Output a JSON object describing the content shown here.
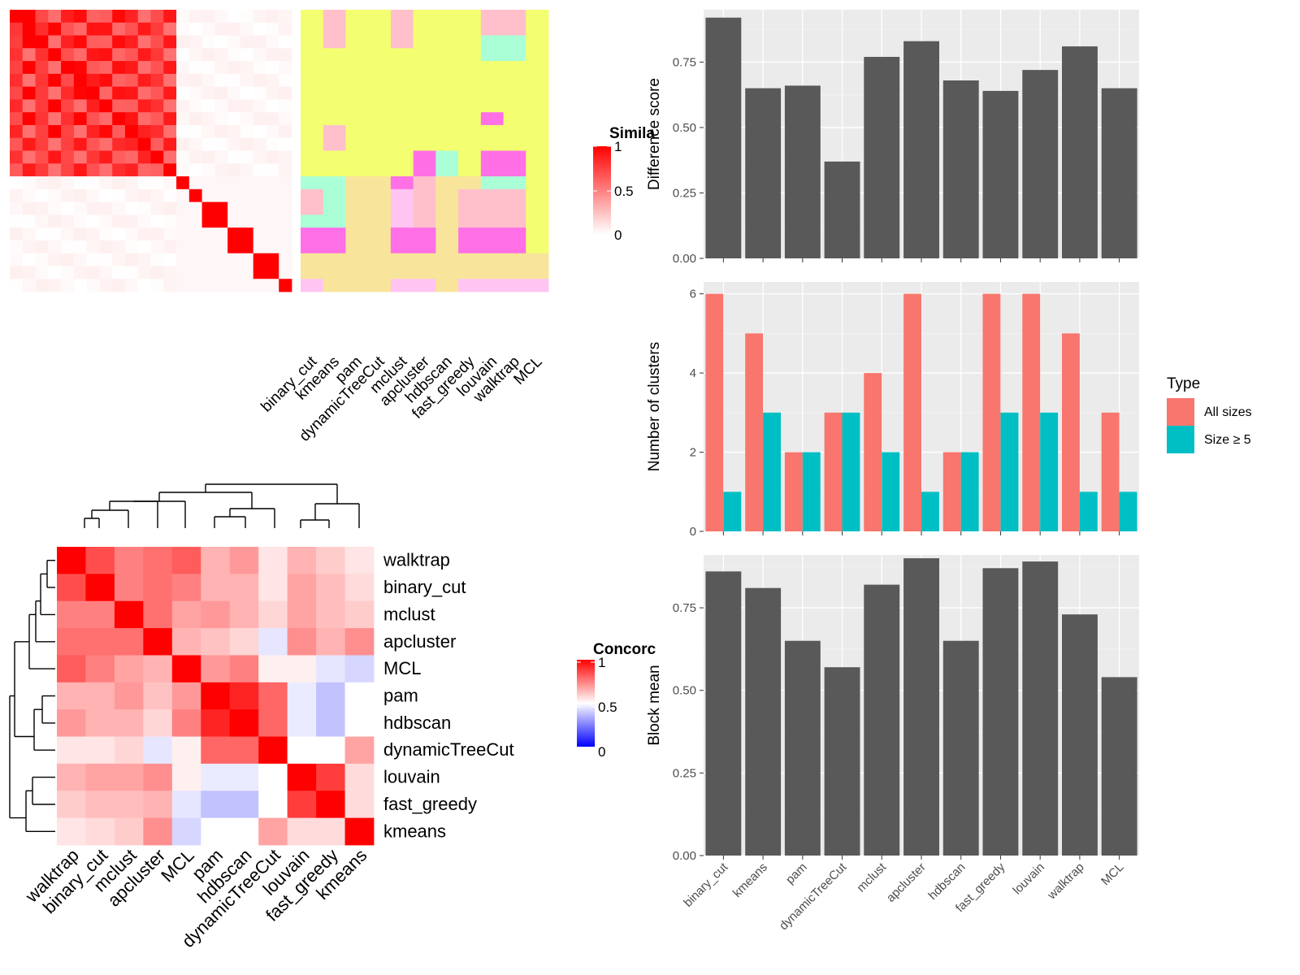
{
  "colors": {
    "heat_red": "#ff0000",
    "heat_white": "#ffffff",
    "heat_blue": "#0000ff",
    "bar_gray": "#595959",
    "panel_bg": "#ebebeb",
    "all_sizes": "#f8766d",
    "size5": "#00bfc4",
    "assign_yellow": "#f3ff70",
    "assign_pink": "#ffc0cb",
    "assign_mint": "#aaffd6",
    "assign_magenta": "#ff6fe6",
    "assign_tan": "#f8e59b",
    "assign_lilac": "#ffc4f1"
  },
  "chart_data": [
    {
      "id": "similarity-heatmap",
      "type": "heatmap",
      "legend_title": "Similarity",
      "legend_title_visible": "Simila",
      "legend_ticks": [
        "1",
        "0.5",
        "0"
      ],
      "size": 22,
      "pattern": "block-diagonal similarity matrix with one large red block (rows 1-13) and small red blocks down the diagonal"
    },
    {
      "id": "assignment-heatmap",
      "type": "heatmap",
      "columns": [
        "binary_cut",
        "kmeans",
        "pam",
        "dynamicTreeCut",
        "mclust",
        "apcluster",
        "hdbscan",
        "fast_greedy",
        "louvain",
        "walktrap",
        "MCL"
      ]
    },
    {
      "id": "concordance-heatmap",
      "type": "heatmap",
      "legend_title": "Concordance",
      "legend_title_visible": "Concorc",
      "legend_ticks": [
        "1",
        "0.5",
        "0"
      ],
      "labels": [
        "walktrap",
        "binary_cut",
        "mclust",
        "apcluster",
        "MCL",
        "pam",
        "hdbscan",
        "dynamicTreeCut",
        "louvain",
        "fast_greedy",
        "kmeans"
      ],
      "matrix": [
        [
          1.0,
          0.85,
          0.75,
          0.78,
          0.82,
          0.65,
          0.7,
          0.55,
          0.65,
          0.6,
          0.55
        ],
        [
          0.85,
          1.0,
          0.75,
          0.78,
          0.75,
          0.65,
          0.65,
          0.55,
          0.68,
          0.63,
          0.57
        ],
        [
          0.75,
          0.75,
          1.0,
          0.78,
          0.68,
          0.7,
          0.65,
          0.58,
          0.68,
          0.63,
          0.6
        ],
        [
          0.78,
          0.78,
          0.78,
          1.0,
          0.65,
          0.62,
          0.58,
          0.45,
          0.72,
          0.65,
          0.72
        ],
        [
          0.82,
          0.75,
          0.68,
          0.65,
          1.0,
          0.7,
          0.75,
          0.53,
          0.53,
          0.45,
          0.42
        ],
        [
          0.65,
          0.65,
          0.7,
          0.62,
          0.7,
          1.0,
          0.93,
          0.8,
          0.46,
          0.38,
          0.5
        ],
        [
          0.7,
          0.65,
          0.65,
          0.58,
          0.75,
          0.93,
          1.0,
          0.8,
          0.46,
          0.38,
          0.5
        ],
        [
          0.55,
          0.55,
          0.58,
          0.45,
          0.53,
          0.8,
          0.8,
          1.0,
          0.5,
          0.5,
          0.68
        ],
        [
          0.65,
          0.68,
          0.68,
          0.72,
          0.53,
          0.46,
          0.46,
          0.5,
          1.0,
          0.88,
          0.57
        ],
        [
          0.6,
          0.63,
          0.63,
          0.65,
          0.45,
          0.38,
          0.38,
          0.5,
          0.88,
          1.0,
          0.57
        ],
        [
          0.55,
          0.57,
          0.6,
          0.72,
          0.42,
          0.5,
          0.5,
          0.68,
          0.57,
          0.57,
          1.0
        ]
      ]
    },
    {
      "id": "difference-score",
      "type": "bar",
      "categories": [
        "binary_cut",
        "kmeans",
        "pam",
        "dynamicTreeCut",
        "mclust",
        "apcluster",
        "hdbscan",
        "fast_greedy",
        "louvain",
        "walktrap",
        "MCL"
      ],
      "values": [
        0.92,
        0.65,
        0.66,
        0.37,
        0.77,
        0.83,
        0.68,
        0.64,
        0.72,
        0.81,
        0.65
      ],
      "ylabel": "Difference score",
      "ylim": [
        0,
        0.95
      ],
      "yticks": [
        "0.00",
        "0.25",
        "0.50",
        "0.75"
      ]
    },
    {
      "id": "number-of-clusters",
      "type": "bar",
      "categories": [
        "binary_cut",
        "kmeans",
        "pam",
        "dynamicTreeCut",
        "mclust",
        "apcluster",
        "hdbscan",
        "fast_greedy",
        "louvain",
        "walktrap",
        "MCL"
      ],
      "series": [
        {
          "name": "All sizes",
          "values": [
            6,
            5,
            2,
            3,
            4,
            6,
            2,
            6,
            6,
            5,
            3
          ]
        },
        {
          "name": "Size ≥ 5",
          "values": [
            1,
            3,
            2,
            3,
            2,
            1,
            2,
            3,
            3,
            1,
            1
          ]
        }
      ],
      "ylabel": "Number of clusters",
      "ylim": [
        0,
        6.3
      ],
      "yticks": [
        "0",
        "2",
        "4",
        "6"
      ],
      "legend_title": "Type",
      "legend": "right"
    },
    {
      "id": "block-mean",
      "type": "bar",
      "categories": [
        "binary_cut",
        "kmeans",
        "pam",
        "dynamicTreeCut",
        "mclust",
        "apcluster",
        "hdbscan",
        "fast_greedy",
        "louvain",
        "walktrap",
        "MCL"
      ],
      "values": [
        0.86,
        0.81,
        0.65,
        0.57,
        0.82,
        0.9,
        0.65,
        0.87,
        0.89,
        0.73,
        0.54
      ],
      "ylabel": "Block mean",
      "ylim": [
        0,
        0.91
      ],
      "yticks": [
        "0.00",
        "0.25",
        "0.50",
        "0.75"
      ]
    }
  ]
}
